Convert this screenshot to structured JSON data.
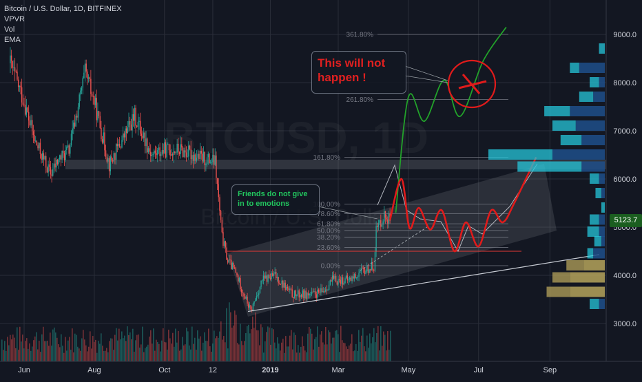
{
  "legend": {
    "symbol_line": "Bitcoin / U.S. Dollar, 1D, BITFINEX",
    "indicators": [
      "VPVR",
      "Vol",
      "EMA"
    ]
  },
  "watermark": {
    "main": "BTCUSD, 1D",
    "sub": "Bitcoin / U.S. Dollar"
  },
  "annotations": {
    "red_callout": "This will not\nhappen !",
    "green_callout": "Friends do not give\nin to emotions"
  },
  "current_price": "5123.7",
  "colors": {
    "background": "#131722",
    "candle_up": "#26a69a",
    "candle_down": "#ef5350",
    "bull_path": "#22a32a",
    "bear_path": "#e01b1b",
    "price_tag": "#1b5e20",
    "vpvr_up": "#26c6da",
    "vpvr_down": "#1e4f8a",
    "vpvr_value_area": "#b5a35b"
  },
  "chart_data": {
    "type": "candlestick",
    "x_axis_labels": [
      "Jun",
      "Aug",
      "Oct",
      "12",
      "2019",
      "Mar",
      "May",
      "Jul",
      "Sep"
    ],
    "y_axis_labels": [
      "9000.0",
      "8000.0",
      "7000.0",
      "6000.0",
      "5000.0",
      "4000.0",
      "3000.0"
    ],
    "ylim": [
      2550,
      10450
    ],
    "y_scale": "linear",
    "grid": true,
    "price_series": {
      "dates": [
        "2018-05-20",
        "2018-06-01",
        "2018-06-10",
        "2018-06-24",
        "2018-07-01",
        "2018-07-10",
        "2018-07-24",
        "2018-08-01",
        "2018-08-14",
        "2018-08-25",
        "2018-09-05",
        "2018-09-20",
        "2018-10-01",
        "2018-10-15",
        "2018-11-01",
        "2018-11-14",
        "2018-11-20",
        "2018-11-25",
        "2018-12-01",
        "2018-12-15",
        "2018-12-25",
        "2019-01-05",
        "2019-01-20",
        "2019-02-08",
        "2019-02-15",
        "2019-02-24",
        "2019-03-10",
        "2019-03-20",
        "2019-04-01",
        "2019-04-03",
        "2019-04-10",
        "2019-04-15"
      ],
      "close": [
        8400,
        7600,
        6800,
        6100,
        6400,
        6600,
        8200,
        7600,
        6300,
        6800,
        7300,
        6500,
        6600,
        6600,
        6450,
        6350,
        4800,
        4300,
        4100,
        3250,
        3900,
        4000,
        3600,
        3600,
        3650,
        3900,
        3900,
        4050,
        4200,
        4950,
        5250,
        5150
      ]
    },
    "scenarios": [
      {
        "name": "",
        "color": "#22a32a",
        "points": [
          [
            "2019-04-20",
            5300
          ],
          [
            "2019-05-01",
            7700
          ],
          [
            "2019-05-15",
            7200
          ],
          [
            "2019-06-01",
            8050
          ],
          [
            "2019-06-15",
            7300
          ],
          [
            "2019-07-05",
            8450
          ],
          [
            "2019-07-25",
            9150
          ]
        ]
      },
      {
        "name": "",
        "color": "#e01b1b",
        "points": [
          [
            "2019-04-15",
            5150
          ],
          [
            "2019-04-25",
            6000
          ],
          [
            "2019-05-02",
            4980
          ],
          [
            "2019-05-10",
            5400
          ],
          [
            "2019-05-20",
            4950
          ],
          [
            "2019-05-30",
            5350
          ],
          [
            "2019-06-10",
            4500
          ],
          [
            "2019-06-20",
            5100
          ],
          [
            "2019-07-01",
            4600
          ],
          [
            "2019-07-12",
            5350
          ],
          [
            "2019-07-22",
            5100
          ],
          [
            "2019-08-01",
            5500
          ],
          [
            "2019-08-20",
            6450
          ]
        ]
      }
    ],
    "fibonacci_levels": [
      {
        "label": "361.80%",
        "value": 9000
      },
      {
        "label": "261.80%",
        "value": 7650
      },
      {
        "label": "161.80%",
        "value": 6450
      },
      {
        "label": "100.00%",
        "value": 5480
      },
      {
        "label": "78.60%",
        "value": 5280
      },
      {
        "label": "61.80%",
        "value": 5070
      },
      {
        "label": "50.00%",
        "value": 4930
      },
      {
        "label": "38.20%",
        "value": 4790
      },
      {
        "label": "23.60%",
        "value": 4580
      },
      {
        "label": "0.00%",
        "value": 4200
      }
    ],
    "volume_profile": [
      {
        "price": 8700,
        "up": 0.05,
        "down": 0.0
      },
      {
        "price": 8300,
        "up": 0.08,
        "down": 0.22
      },
      {
        "price": 8000,
        "up": 0.08,
        "down": 0.05
      },
      {
        "price": 7700,
        "up": 0.12,
        "down": 0.1
      },
      {
        "price": 7400,
        "up": 0.22,
        "down": 0.3
      },
      {
        "price": 7100,
        "up": 0.2,
        "down": 0.25
      },
      {
        "price": 6800,
        "up": 0.18,
        "down": 0.2
      },
      {
        "price": 6500,
        "up": 0.55,
        "down": 0.45
      },
      {
        "price": 6250,
        "up": 0.55,
        "down": 0.2
      },
      {
        "price": 6000,
        "up": 0.08,
        "down": 0.05
      },
      {
        "price": 5700,
        "up": 0.05,
        "down": 0.03
      },
      {
        "price": 5400,
        "up": 0.03,
        "down": 0.0
      },
      {
        "price": 5150,
        "up": 0.08,
        "down": 0.05
      },
      {
        "price": 4900,
        "up": 0.1,
        "down": 0.05
      },
      {
        "price": 4700,
        "up": 0.06,
        "down": 0.03
      },
      {
        "price": 4450,
        "up": 0.05,
        "down": 0.1
      },
      {
        "price": 4200,
        "up": 0.15,
        "down": 0.18
      },
      {
        "price": 3950,
        "up": 0.15,
        "down": 0.3
      },
      {
        "price": 3650,
        "up": 0.2,
        "down": 0.3
      },
      {
        "price": 3400,
        "up": 0.08,
        "down": 0.05
      }
    ]
  }
}
